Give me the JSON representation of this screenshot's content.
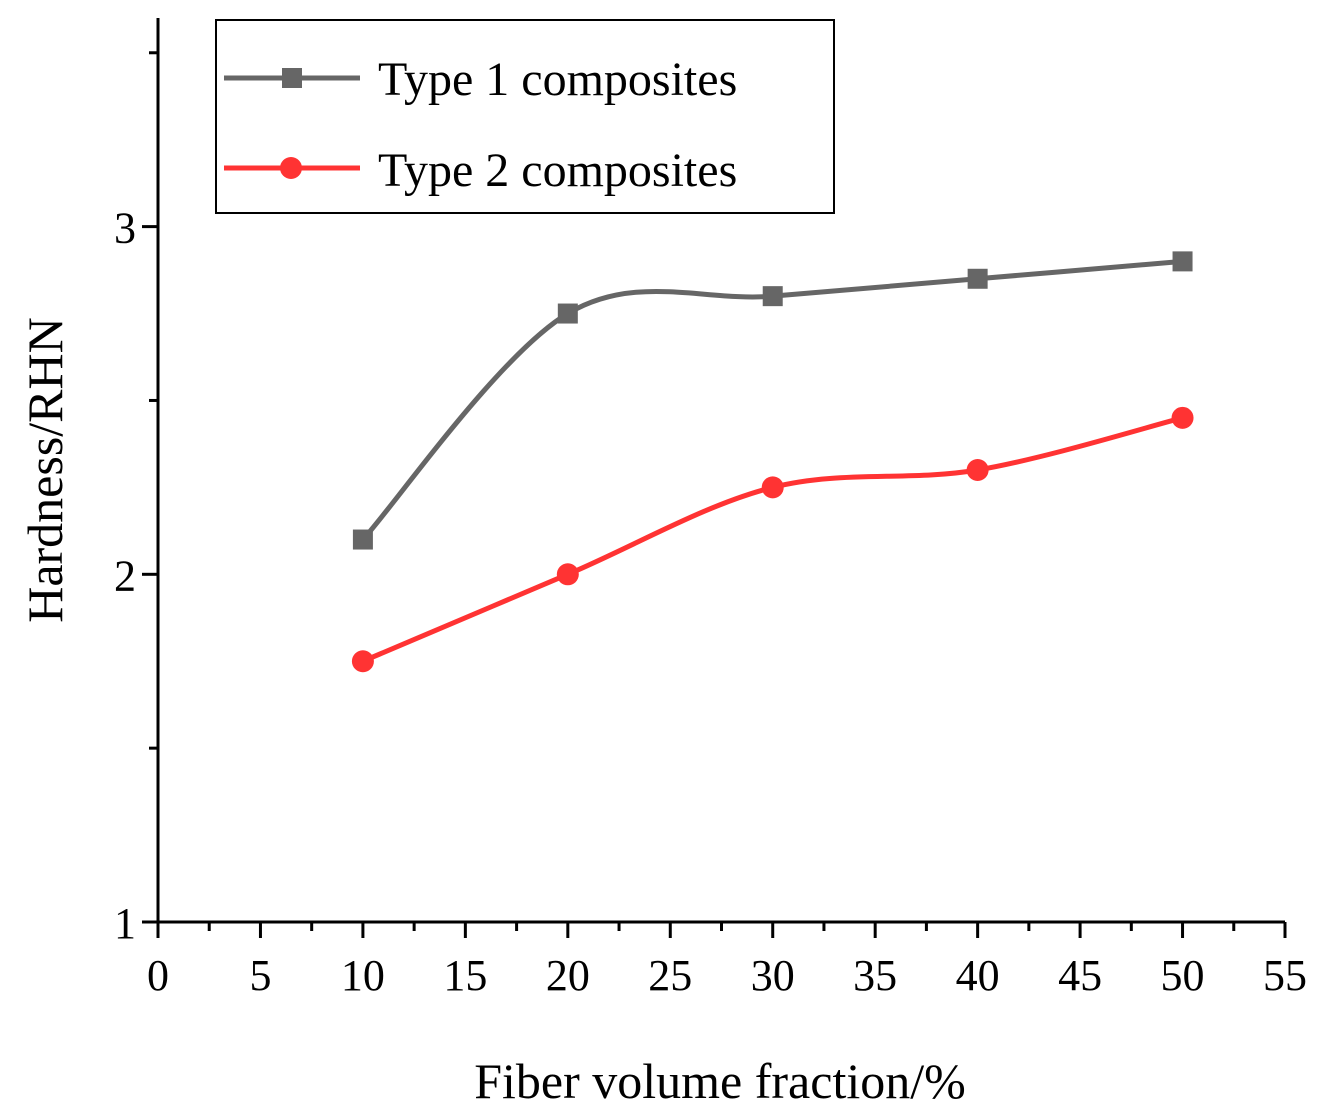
{
  "chart_data": {
    "type": "line",
    "title": "",
    "xlabel": "Fiber volume fraction/%",
    "ylabel": "Hardness/RHN",
    "xlim": [
      0,
      55
    ],
    "ylim": [
      1,
      3.6
    ],
    "x_ticks": [
      "0",
      "5",
      "10",
      "15",
      "20",
      "25",
      "30",
      "35",
      "40",
      "45",
      "50",
      "55"
    ],
    "y_ticks": [
      "1",
      "2",
      "3"
    ],
    "legend_position": "top-left",
    "grid": false,
    "x": [
      10,
      20,
      30,
      40,
      50
    ],
    "series": [
      {
        "name": "Type 1 composites",
        "marker": "square",
        "color": "#666666",
        "values": [
          2.1,
          2.75,
          2.8,
          2.85,
          2.9
        ]
      },
      {
        "name": "Type 2 composites",
        "marker": "circle",
        "color": "#ff3333",
        "values": [
          1.75,
          2.0,
          2.25,
          2.3,
          2.45
        ]
      }
    ]
  }
}
